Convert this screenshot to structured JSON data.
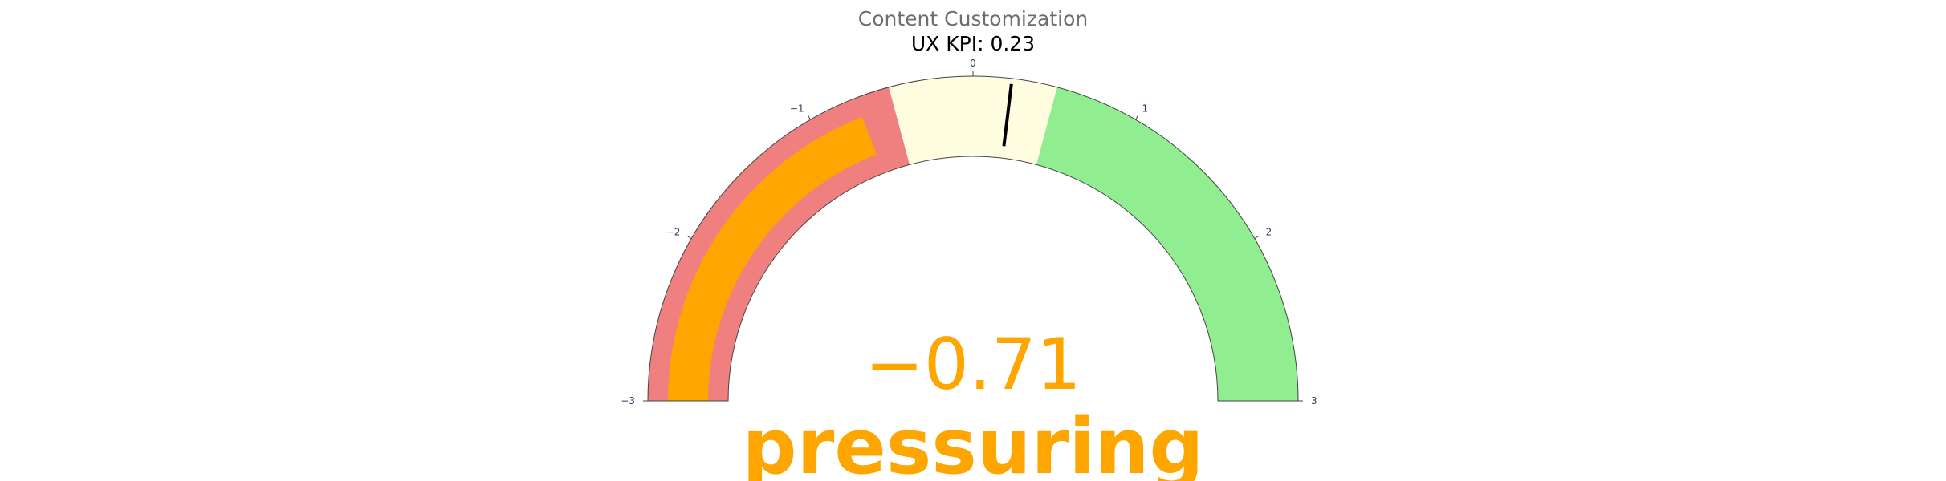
{
  "chart_data": {
    "type": "gauge",
    "title": "Content Customization",
    "subtitle": "UX KPI: 0.23",
    "range": [
      -3,
      3
    ],
    "value": -0.71,
    "value_display": "−0.71",
    "value_label": "pressuring",
    "threshold": 0.23,
    "ticks": [
      {
        "value": -3,
        "label": "−3"
      },
      {
        "value": -2,
        "label": "−2"
      },
      {
        "value": -1,
        "label": "−1"
      },
      {
        "value": 0,
        "label": "0"
      },
      {
        "value": 1,
        "label": "1"
      },
      {
        "value": 2,
        "label": "2"
      },
      {
        "value": 3,
        "label": "3"
      }
    ],
    "steps": [
      {
        "range": [
          -3,
          -0.5
        ],
        "color": "#f08080"
      },
      {
        "range": [
          -0.5,
          0.5
        ],
        "color": "#fffde0"
      },
      {
        "range": [
          0.5,
          3
        ],
        "color": "#90ee90"
      }
    ],
    "colors": {
      "bar": "#ffa500",
      "value_text": "#ffa500",
      "threshold": "#000000",
      "title": "#6e6e6e",
      "subtitle": "#000000",
      "tick_label": "#2a3f5f",
      "outline": "#444444"
    }
  }
}
